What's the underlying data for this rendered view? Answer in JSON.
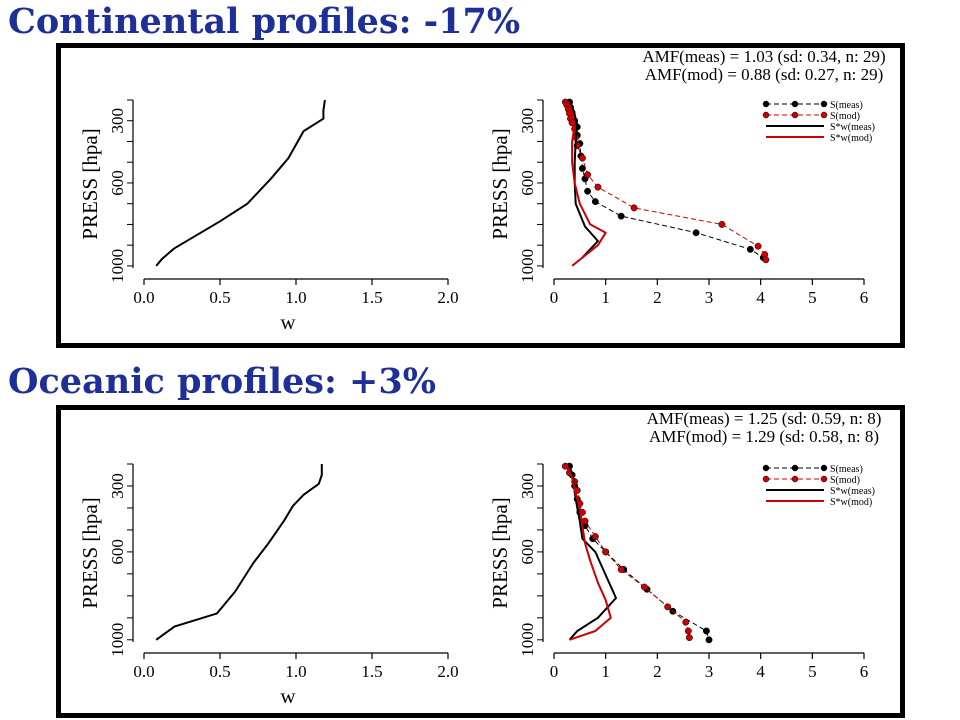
{
  "titles": {
    "continental": "Continental profiles: -17%",
    "oceanic": "Oceanic profiles: +3%"
  },
  "colors": {
    "meas": "#000000",
    "mod": "#cc0000",
    "title": "#1f2f98"
  },
  "chart_data": [
    {
      "type": "line",
      "panel": "continental",
      "xlabel": "w",
      "ylabel": "PRESS [hpa]",
      "xlim": [
        0,
        2
      ],
      "xticks": [
        "0.0",
        "0.5",
        "1.0",
        "1.5",
        "2.0"
      ],
      "ylim": [
        1010,
        200
      ],
      "yticks": [
        "300",
        "600",
        "1000"
      ],
      "y_reversed": true,
      "series": [
        {
          "x": [
            0.08,
            0.12,
            0.2,
            0.35,
            0.5,
            0.68,
            0.84,
            0.95,
            1.05,
            1.18,
            1.18,
            1.19
          ],
          "y": [
            1000,
            965,
            915,
            850,
            785,
            700,
            575,
            480,
            350,
            290,
            250,
            200
          ]
        }
      ]
    },
    {
      "type": "line",
      "panel": "continental",
      "annotations": [
        "AMF(meas) = 1.03 (sd: 0.34, n: 29)",
        "AMF(mod) = 0.88 (sd: 0.27, n: 29)"
      ],
      "ylabel": "PRESS [hpa]",
      "xlim": [
        0,
        6
      ],
      "xticks": [
        "0",
        "1",
        "2",
        "3",
        "4",
        "5",
        "6"
      ],
      "ylim": [
        1010,
        200
      ],
      "yticks": [
        "300",
        "600",
        "1000"
      ],
      "y_reversed": true,
      "legend": {
        "position": "top-right",
        "entries": [
          "S(meas)",
          "S(mod)",
          "S*w(meas)",
          "S*w(mod)"
        ]
      },
      "series": [
        {
          "name": "S(meas)",
          "style": "points-dashed",
          "color": "#000000",
          "x": [
            0.3,
            0.32,
            0.35,
            0.4,
            0.45,
            0.45,
            0.5,
            0.52,
            0.55,
            0.6,
            0.65,
            0.8,
            1.3,
            2.75,
            3.8,
            4.05
          ],
          "y": [
            210,
            235,
            260,
            300,
            330,
            370,
            410,
            470,
            530,
            580,
            640,
            690,
            760,
            840,
            920,
            960
          ]
        },
        {
          "name": "S(mod)",
          "style": "points-dashed",
          "color": "#cc0000",
          "x": [
            0.22,
            0.25,
            0.28,
            0.3,
            0.32,
            0.35,
            0.4,
            0.42,
            0.45,
            0.55,
            0.65,
            0.85,
            1.55,
            3.25,
            3.95,
            4.08,
            4.1
          ],
          "y": [
            210,
            225,
            245,
            265,
            290,
            310,
            340,
            380,
            420,
            480,
            560,
            620,
            720,
            800,
            905,
            945,
            970
          ]
        },
        {
          "name": "S*w(meas)",
          "style": "solid",
          "color": "#000000",
          "x": [
            0.3,
            0.38,
            0.45,
            0.42,
            0.4,
            0.4,
            0.42,
            0.6,
            0.85,
            0.55
          ],
          "y": [
            210,
            250,
            320,
            400,
            500,
            600,
            700,
            810,
            880,
            960
          ]
        },
        {
          "name": "S*w(mod)",
          "style": "solid",
          "color": "#cc0000",
          "x": [
            0.28,
            0.35,
            0.4,
            0.35,
            0.35,
            0.4,
            0.5,
            0.7,
            1.0,
            0.85,
            0.35
          ],
          "y": [
            210,
            260,
            320,
            400,
            500,
            600,
            700,
            800,
            840,
            900,
            1000
          ]
        }
      ]
    },
    {
      "type": "line",
      "panel": "oceanic",
      "xlabel": "w",
      "ylabel": "PRESS [hpa]",
      "xlim": [
        0,
        2
      ],
      "xticks": [
        "0.0",
        "0.5",
        "1.0",
        "1.5",
        "2.0"
      ],
      "ylim": [
        1010,
        200
      ],
      "yticks": [
        "300",
        "600",
        "1000"
      ],
      "y_reversed": true,
      "series": [
        {
          "x": [
            0.08,
            0.2,
            0.48,
            0.6,
            0.72,
            0.82,
            0.92,
            0.98,
            1.05,
            1.15,
            1.17,
            1.17
          ],
          "y": [
            1000,
            940,
            880,
            780,
            650,
            560,
            460,
            390,
            340,
            290,
            250,
            200
          ]
        }
      ]
    },
    {
      "type": "line",
      "panel": "oceanic",
      "annotations": [
        "AMF(meas) = 1.25 (sd: 0.59, n: 8)",
        "AMF(mod) = 1.29 (sd: 0.58, n: 8)"
      ],
      "ylabel": "PRESS [hpa]",
      "xlim": [
        0,
        6
      ],
      "xticks": [
        "0",
        "1",
        "2",
        "3",
        "4",
        "5",
        "6"
      ],
      "ylim": [
        1010,
        200
      ],
      "yticks": [
        "300",
        "600",
        "1000"
      ],
      "y_reversed": true,
      "legend": {
        "position": "top-right",
        "entries": [
          "S(meas)",
          "S(mod)",
          "S*w(meas)",
          "S*w(mod)"
        ]
      },
      "series": [
        {
          "name": "S(meas)",
          "style": "points-dashed",
          "color": "#000000",
          "x": [
            0.3,
            0.35,
            0.4,
            0.45,
            0.5,
            0.6,
            0.75,
            1.0,
            1.35,
            1.8,
            2.3,
            2.95,
            3.0
          ],
          "y": [
            210,
            250,
            300,
            360,
            420,
            480,
            540,
            600,
            680,
            770,
            870,
            960,
            1000
          ]
        },
        {
          "name": "S(mod)",
          "style": "points-dashed",
          "color": "#cc0000",
          "x": [
            0.22,
            0.3,
            0.4,
            0.45,
            0.5,
            0.55,
            0.6,
            0.8,
            1.0,
            1.3,
            1.75,
            2.2,
            2.55,
            2.6,
            2.62
          ],
          "y": [
            210,
            240,
            280,
            320,
            380,
            420,
            460,
            530,
            600,
            680,
            760,
            850,
            920,
            960,
            990
          ]
        },
        {
          "name": "S*w(meas)",
          "style": "solid",
          "color": "#000000",
          "x": [
            0.3,
            0.38,
            0.4,
            0.45,
            0.5,
            0.55,
            0.8,
            1.2,
            0.85,
            0.45,
            0.3
          ],
          "y": [
            210,
            270,
            330,
            400,
            460,
            540,
            600,
            810,
            900,
            960,
            1000
          ]
        },
        {
          "name": "S*w(mod)",
          "style": "solid",
          "color": "#cc0000",
          "x": [
            0.25,
            0.35,
            0.4,
            0.5,
            0.55,
            0.6,
            0.7,
            0.85,
            1.0,
            1.1,
            0.8,
            0.3
          ],
          "y": [
            210,
            260,
            320,
            400,
            480,
            560,
            640,
            740,
            820,
            900,
            960,
            1000
          ]
        }
      ]
    }
  ]
}
